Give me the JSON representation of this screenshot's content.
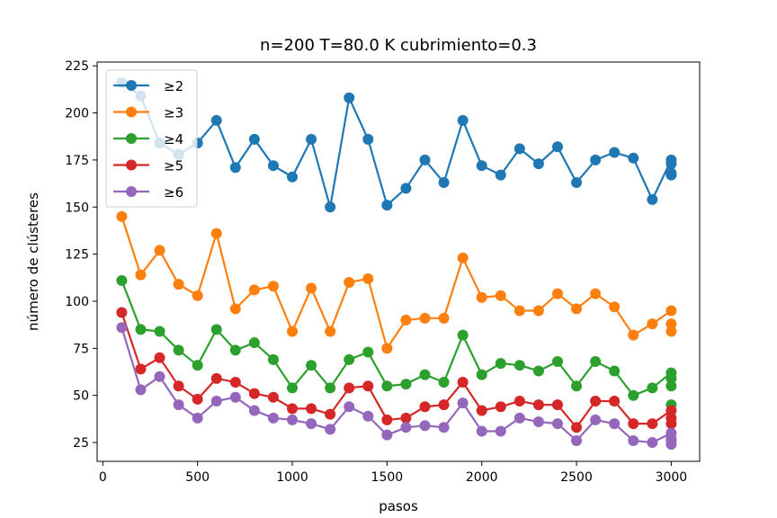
{
  "chart_data": {
    "type": "line",
    "title": "n=200 T=80.0 K cubrimiento=0.3",
    "xlabel": "pasos",
    "ylabel": "número de clústeres",
    "xlim": [
      -30,
      3150
    ],
    "ylim": [
      15,
      227
    ],
    "xticks": [
      0,
      500,
      1000,
      1500,
      2000,
      2500,
      3000
    ],
    "yticks": [
      25,
      50,
      75,
      100,
      125,
      150,
      175,
      200,
      225
    ],
    "legend_position": "top-left",
    "grid": false,
    "x": [
      100,
      200,
      300,
      400,
      500,
      600,
      700,
      800,
      900,
      1000,
      1100,
      1200,
      1300,
      1400,
      1500,
      1600,
      1700,
      1800,
      1900,
      2000,
      2100,
      2200,
      2300,
      2400,
      2500,
      2600,
      2700,
      2800,
      2900,
      3000
    ],
    "series": [
      {
        "name": "≥2",
        "color": "#1f77b4",
        "values": [
          216,
          209,
          184,
          178,
          184,
          196,
          171,
          186,
          172,
          166,
          186,
          150,
          208,
          186,
          151,
          160,
          175,
          163,
          196,
          172,
          167,
          181,
          173,
          182,
          163,
          175,
          179,
          176,
          154,
          175
        ],
        "extra_final": [
          167,
          168,
          173
        ]
      },
      {
        "name": "≥3",
        "color": "#ff7f0e",
        "values": [
          145,
          114,
          127,
          109,
          103,
          136,
          96,
          106,
          108,
          84,
          107,
          84,
          110,
          112,
          75,
          90,
          91,
          91,
          123,
          102,
          103,
          95,
          95,
          104,
          96,
          104,
          97,
          82,
          88,
          95
        ],
        "extra_final": [
          84,
          88
        ]
      },
      {
        "name": "≥4",
        "color": "#2ca02c",
        "values": [
          111,
          85,
          84,
          74,
          66,
          85,
          74,
          78,
          69,
          54,
          66,
          54,
          69,
          73,
          55,
          56,
          61,
          57,
          82,
          61,
          67,
          66,
          63,
          68,
          55,
          68,
          63,
          50,
          54,
          62
        ],
        "extra_final": [
          59,
          55,
          45
        ]
      },
      {
        "name": "≥5",
        "color": "#d62728",
        "values": [
          94,
          64,
          70,
          55,
          48,
          59,
          57,
          51,
          49,
          43,
          43,
          40,
          54,
          55,
          37,
          38,
          44,
          45,
          57,
          42,
          44,
          47,
          45,
          45,
          33,
          47,
          47,
          35,
          35,
          42
        ],
        "extra_final": [
          35,
          38
        ]
      },
      {
        "name": "≥6",
        "color": "#9467bd",
        "values": [
          86,
          53,
          60,
          45,
          38,
          47,
          49,
          42,
          38,
          37,
          35,
          32,
          44,
          39,
          29,
          33,
          34,
          33,
          46,
          31,
          31,
          38,
          36,
          35,
          26,
          37,
          35,
          26,
          25,
          30
        ],
        "extra_final": [
          26,
          24,
          27
        ]
      }
    ]
  }
}
